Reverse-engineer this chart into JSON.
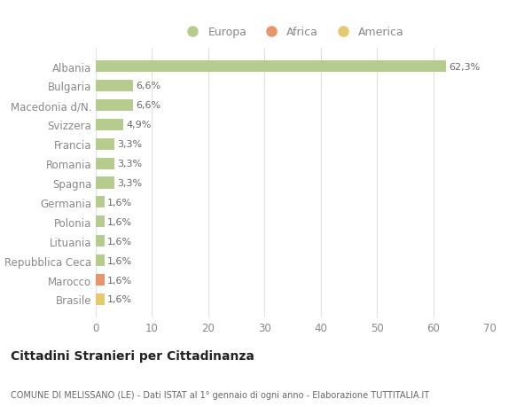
{
  "categories": [
    "Albania",
    "Bulgaria",
    "Macedonia d/N.",
    "Svizzera",
    "Francia",
    "Romania",
    "Spagna",
    "Germania",
    "Polonia",
    "Lituania",
    "Repubblica Ceca",
    "Marocco",
    "Brasile"
  ],
  "values": [
    62.3,
    6.6,
    6.6,
    4.9,
    3.3,
    3.3,
    3.3,
    1.6,
    1.6,
    1.6,
    1.6,
    1.6,
    1.6
  ],
  "continent": [
    "Europa",
    "Europa",
    "Europa",
    "Europa",
    "Europa",
    "Europa",
    "Europa",
    "Europa",
    "Europa",
    "Europa",
    "Europa",
    "Africa",
    "America"
  ],
  "colors": {
    "Europa": "#b5cc8e",
    "Africa": "#e8956d",
    "America": "#e8c86d"
  },
  "xlim": [
    0,
    70
  ],
  "xticks": [
    0,
    10,
    20,
    30,
    40,
    50,
    60,
    70
  ],
  "title": "Cittadini Stranieri per Cittadinanza",
  "subtitle": "COMUNE DI MELISSANO (LE) - Dati ISTAT al 1° gennaio di ogni anno - Elaborazione TUTTITALIA.IT",
  "background_color": "#ffffff",
  "plot_background": "#ffffff",
  "grid_color": "#e0e0e0",
  "bar_label_color": "#666666",
  "axis_label_color": "#888888",
  "title_color": "#222222",
  "subtitle_color": "#666666",
  "legend_order": [
    "Europa",
    "Africa",
    "America"
  ]
}
